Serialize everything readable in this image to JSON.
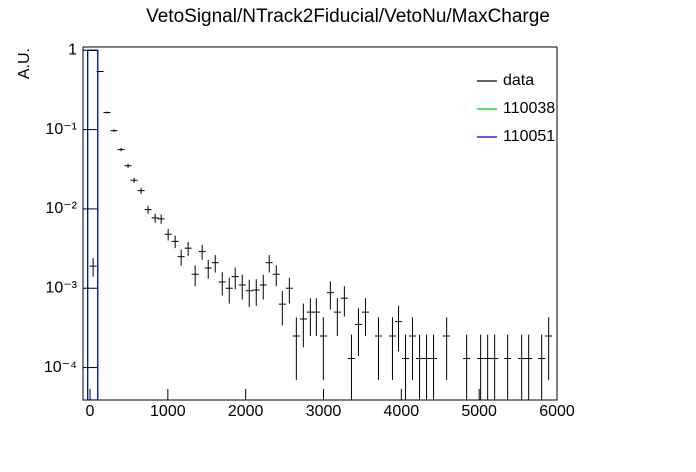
{
  "chart_data": {
    "type": "errorbar",
    "title": "VetoSignal/NTrack2Fiducial/VetoNu/MaxCharge",
    "ylabel": "A.U.",
    "log_y": true,
    "xlim": [
      -90,
      6000
    ],
    "xticks": [
      0,
      1000,
      2000,
      3000,
      4000,
      5000,
      6000
    ],
    "ylim": [
      3.9e-05,
      1.1
    ],
    "yticks": [
      {
        "value": 0.0001,
        "label": "10⁻⁴"
      },
      {
        "value": 0.001,
        "label": "10⁻³"
      },
      {
        "value": 0.01,
        "label": "10⁻²"
      },
      {
        "value": 0.1,
        "label": "10⁻¹"
      },
      1
    ],
    "legend": "top-right",
    "series": [
      {
        "name": "data",
        "color": "#000000",
        "xerr": 45,
        "x": [
          40,
          130,
          219,
          309,
          399,
          489,
          566,
          656,
          746,
          837,
          914,
          1004,
          1094,
          1171,
          1261,
          1351,
          1441,
          1519,
          1609,
          1699,
          1789,
          1866,
          1956,
          2046,
          2136,
          2226,
          2303,
          2393,
          2471,
          2561,
          2651,
          2741,
          2831,
          2908,
          2998,
          3088,
          3178,
          3268,
          3359,
          3449,
          3539,
          3706,
          3886,
          3964,
          4054,
          4144,
          4234,
          4324,
          4414,
          4582,
          4839,
          5019,
          5109,
          5199,
          5366,
          5546,
          5636,
          5803,
          5893
        ],
        "values": [
          0.0019,
          0.54,
          0.164,
          0.097,
          0.056,
          0.035,
          0.023,
          0.017,
          0.0098,
          0.0077,
          0.0075,
          0.0048,
          0.0039,
          0.0025,
          0.0032,
          0.0015,
          0.0029,
          0.0018,
          0.0021,
          0.0012,
          0.001,
          0.0014,
          0.0011,
          0.00093,
          0.00095,
          0.0011,
          0.0021,
          0.0015,
          0.00063,
          0.001,
          0.00025,
          0.00041,
          0.0005,
          0.0005,
          0.00025,
          0.00088,
          0.0005,
          0.00075,
          0.00013,
          0.00035,
          0.0005,
          0.00025,
          0.00025,
          0.00038,
          0.00013,
          0.00025,
          0.00013,
          0.00013,
          0.00013,
          0.00025,
          0.00013,
          0.00013,
          0.00013,
          0.00013,
          0.00013,
          0.00013,
          0.00013,
          0.00013,
          0.00025
        ],
        "errors": [
          0.0005,
          0.0084,
          0.0046,
          0.0036,
          0.0027,
          0.0021,
          0.0017,
          0.0015,
          0.0011,
          0.001,
          0.001,
          0.0008,
          0.0007,
          0.00057,
          0.00064,
          0.00044,
          0.00061,
          0.00048,
          0.00052,
          0.00039,
          0.00036,
          0.00043,
          0.00038,
          0.00035,
          0.00035,
          0.00038,
          0.00052,
          0.00044,
          0.00029,
          0.00036,
          0.00018,
          0.00023,
          0.00025,
          0.00025,
          0.00018,
          0.00034,
          0.00025,
          0.00031,
          0.00013,
          0.00021,
          0.00025,
          0.00018,
          0.00018,
          0.00022,
          0.00013,
          0.00018,
          0.00013,
          0.00013,
          0.00013,
          0.00018,
          0.00013,
          0.00013,
          0.00013,
          0.00013,
          0.00013,
          0.00013,
          0.00013,
          0.00013,
          0.00018
        ]
      },
      {
        "name": "110038",
        "color": "#00cc00",
        "bins": [
          -30,
          100
        ],
        "values": [
          1
        ]
      },
      {
        "name": "110051",
        "color": "#0000cc",
        "bins": [
          -30,
          100
        ],
        "values": [
          1
        ]
      }
    ]
  }
}
